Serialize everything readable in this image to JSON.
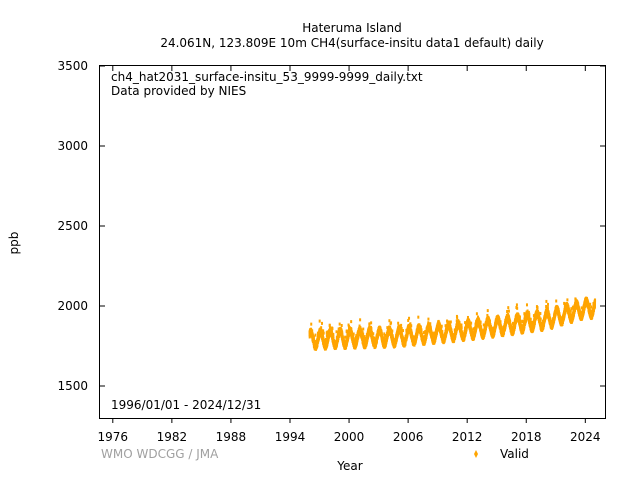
{
  "title_line1": "Hateruma Island",
  "title_line2": "24.061N, 123.809E 10m    CH4(surface-insitu data1 default) daily",
  "annotation_file": "ch4_hat2031_surface-insitu_53_9999-9999_daily.txt",
  "annotation_provider": "Data provided by NIES",
  "date_range": "1996/01/01 - 2024/12/31",
  "footer": "WMO WDCGG / JMA",
  "colors": {
    "series": "#FFA500",
    "axis": "#000000",
    "footer": "#a0a0a0"
  },
  "chart_data": {
    "type": "scatter",
    "xlabel": "Year",
    "ylabel": "ppb",
    "xlim": [
      1974.7,
      2026.0
    ],
    "ylim": [
      1300,
      3500
    ],
    "xticks": [
      "1976",
      "1982",
      "1988",
      "1994",
      "2000",
      "2006",
      "2012",
      "2018",
      "2024"
    ],
    "yticks": [
      "1500",
      "2000",
      "2500",
      "3000",
      "3500"
    ],
    "grid": false,
    "legend": {
      "placement": "bottom-right",
      "entries": [
        "Valid"
      ]
    },
    "series": [
      {
        "name": "Valid",
        "x_start": 1996.0,
        "x_end": 2024.99,
        "x_unit": "year",
        "baseline_ppb": [
          [
            1996,
            1790
          ],
          [
            2000,
            1800
          ],
          [
            2004,
            1805
          ],
          [
            2008,
            1825
          ],
          [
            2012,
            1850
          ],
          [
            2016,
            1880
          ],
          [
            2020,
            1915
          ],
          [
            2024,
            1985
          ]
        ],
        "seasonal_amplitude_ppb": 45,
        "approx_range_ppb": [
          1720,
          2110
        ]
      }
    ]
  }
}
